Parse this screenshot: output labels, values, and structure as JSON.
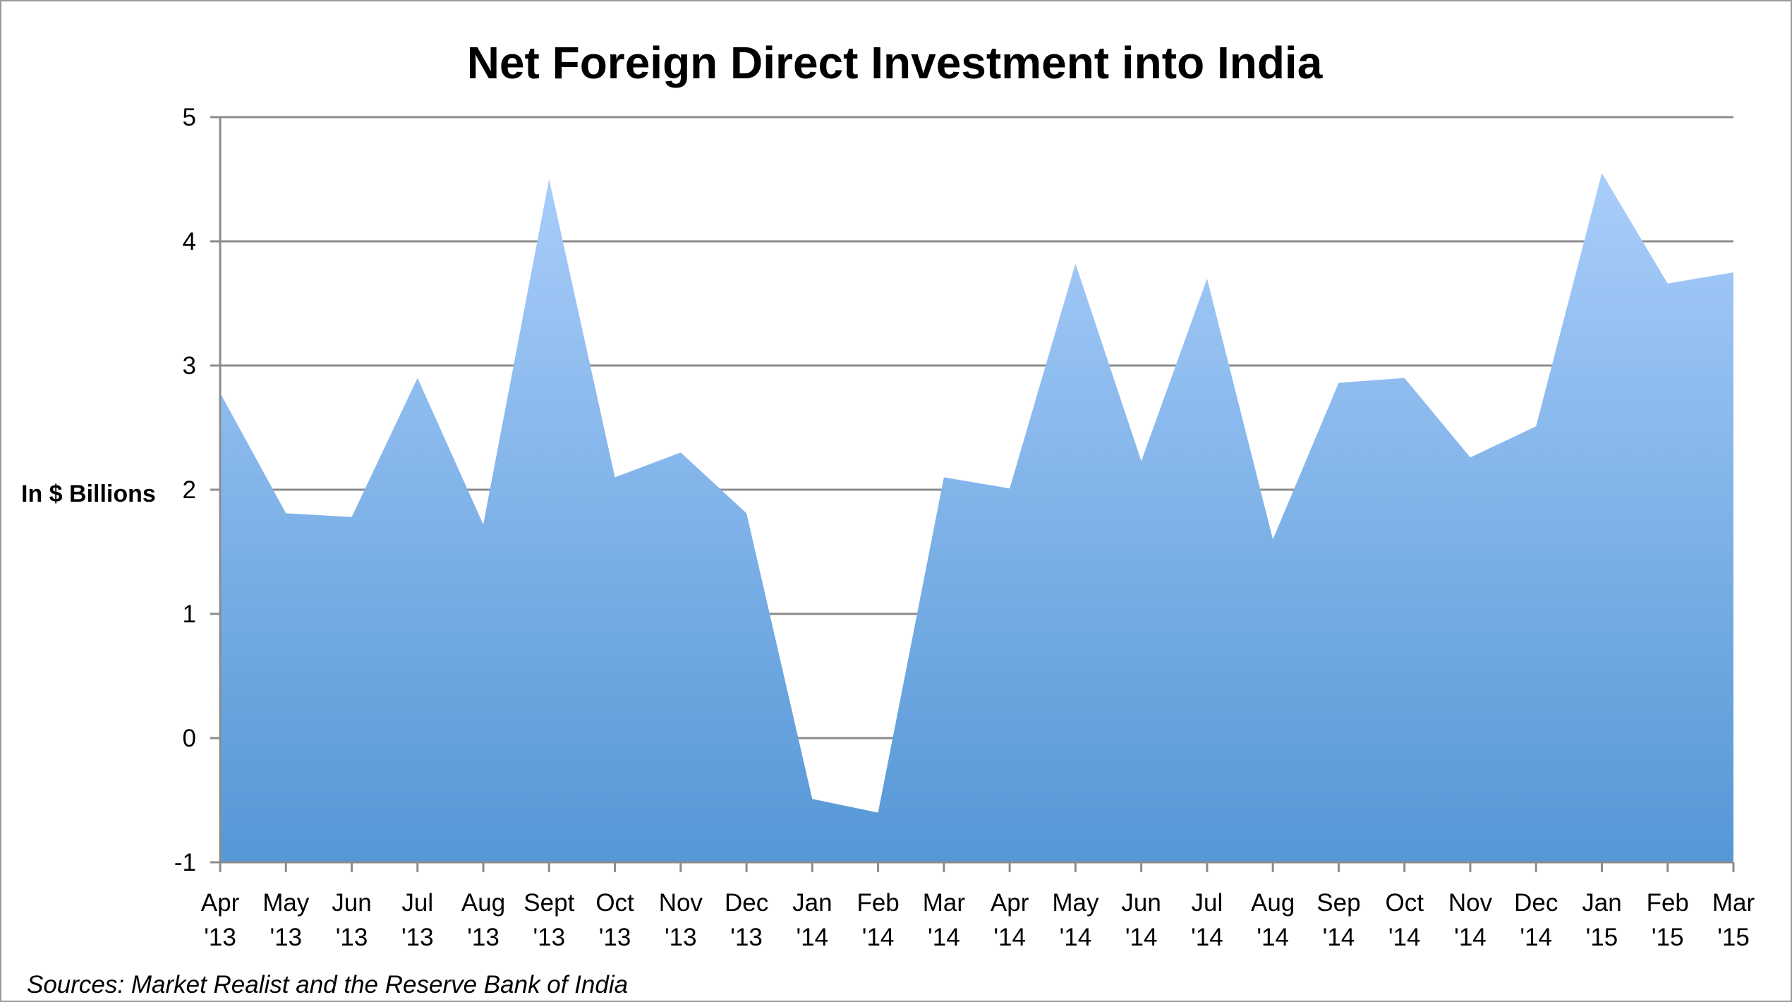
{
  "chart_data": {
    "type": "area",
    "title": "Net Foreign Direct Investment into India",
    "ylabel": "In $ Billions",
    "xlabel": "",
    "source": "Sources: Market Realist and the Reserve Bank of India",
    "ylim": [
      -1,
      5
    ],
    "yticks": [
      "-1",
      "0",
      "1",
      "2",
      "3",
      "4",
      "5"
    ],
    "grid": true,
    "legend": "none",
    "fill_colors": {
      "top": "#a9cdfa",
      "bottom": "#5597d6"
    },
    "gridline_color": "#8c8c8c",
    "categories": [
      {
        "month": "Apr",
        "year": "'13"
      },
      {
        "month": "May",
        "year": "'13"
      },
      {
        "month": "Jun",
        "year": "'13"
      },
      {
        "month": "Jul",
        "year": "'13"
      },
      {
        "month": "Aug",
        "year": "'13"
      },
      {
        "month": "Sept",
        "year": "'13"
      },
      {
        "month": "Oct",
        "year": "'13"
      },
      {
        "month": "Nov",
        "year": "'13"
      },
      {
        "month": "Dec",
        "year": "'13"
      },
      {
        "month": "Jan",
        "year": "'14"
      },
      {
        "month": "Feb",
        "year": "'14"
      },
      {
        "month": "Mar",
        "year": "'14"
      },
      {
        "month": "Apr",
        "year": "'14"
      },
      {
        "month": "May",
        "year": "'14"
      },
      {
        "month": "Jun",
        "year": "'14"
      },
      {
        "month": "Jul",
        "year": "'14"
      },
      {
        "month": "Aug",
        "year": "'14"
      },
      {
        "month": "Sep",
        "year": "'14"
      },
      {
        "month": "Oct",
        "year": "'14"
      },
      {
        "month": "Nov",
        "year": "'14"
      },
      {
        "month": "Dec",
        "year": "'14"
      },
      {
        "month": "Jan",
        "year": "'15"
      },
      {
        "month": "Feb",
        "year": "'15"
      },
      {
        "month": "Mar",
        "year": "'15"
      }
    ],
    "values": [
      2.78,
      1.81,
      1.78,
      2.9,
      1.72,
      4.5,
      2.1,
      2.3,
      1.81,
      -0.49,
      -0.6,
      2.1,
      2.01,
      3.82,
      2.23,
      3.7,
      1.6,
      2.86,
      2.9,
      2.26,
      2.51,
      4.55,
      3.66,
      3.75
    ]
  }
}
